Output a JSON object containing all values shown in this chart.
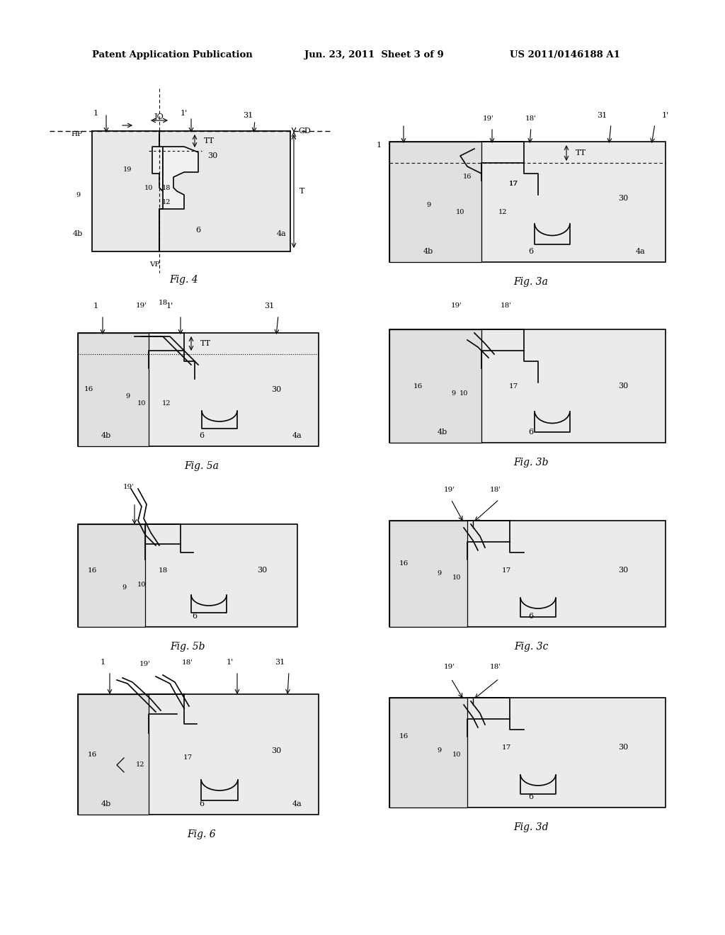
{
  "bg_color": "#ffffff",
  "header_text": "Patent Application Publication",
  "header_date": "Jun. 23, 2011  Sheet 3 of 9",
  "header_patent": "US 2011/0146188 A1",
  "figures": [
    "Fig. 4",
    "Fig. 3a",
    "Fig. 5a",
    "Fig. 3b",
    "Fig. 5b",
    "Fig. 3c",
    "Fig. 6",
    "Fig. 3d"
  ]
}
